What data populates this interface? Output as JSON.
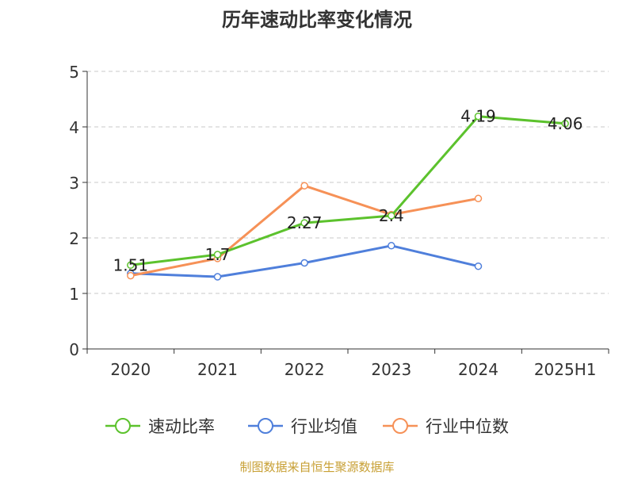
{
  "chart_data": {
    "type": "line",
    "title": "历年速动比率变化情况",
    "categories": [
      "2020",
      "2021",
      "2022",
      "2023",
      "2024",
      "2025H1"
    ],
    "y_ticks": [
      "0",
      "1",
      "2",
      "3",
      "4",
      "5"
    ],
    "ylim": [
      0,
      5
    ],
    "grid": true,
    "legend_position": "bottom",
    "series": [
      {
        "name": "速动比率",
        "color": "#5cc22d",
        "values": [
          1.51,
          1.7,
          2.27,
          2.4,
          4.19,
          4.06
        ],
        "labels": [
          "1.51",
          "1.7",
          "2.27",
          "2.4",
          "4.19",
          "4.06"
        ]
      },
      {
        "name": "行业均值",
        "color": "#4f7fdb",
        "values": [
          1.36,
          1.3,
          1.55,
          1.86,
          1.49,
          null
        ]
      },
      {
        "name": "行业中位数",
        "color": "#f69157",
        "values": [
          1.32,
          1.63,
          2.94,
          2.42,
          2.71,
          null
        ]
      }
    ],
    "source": "制图数据来自恒生聚源数据库"
  }
}
